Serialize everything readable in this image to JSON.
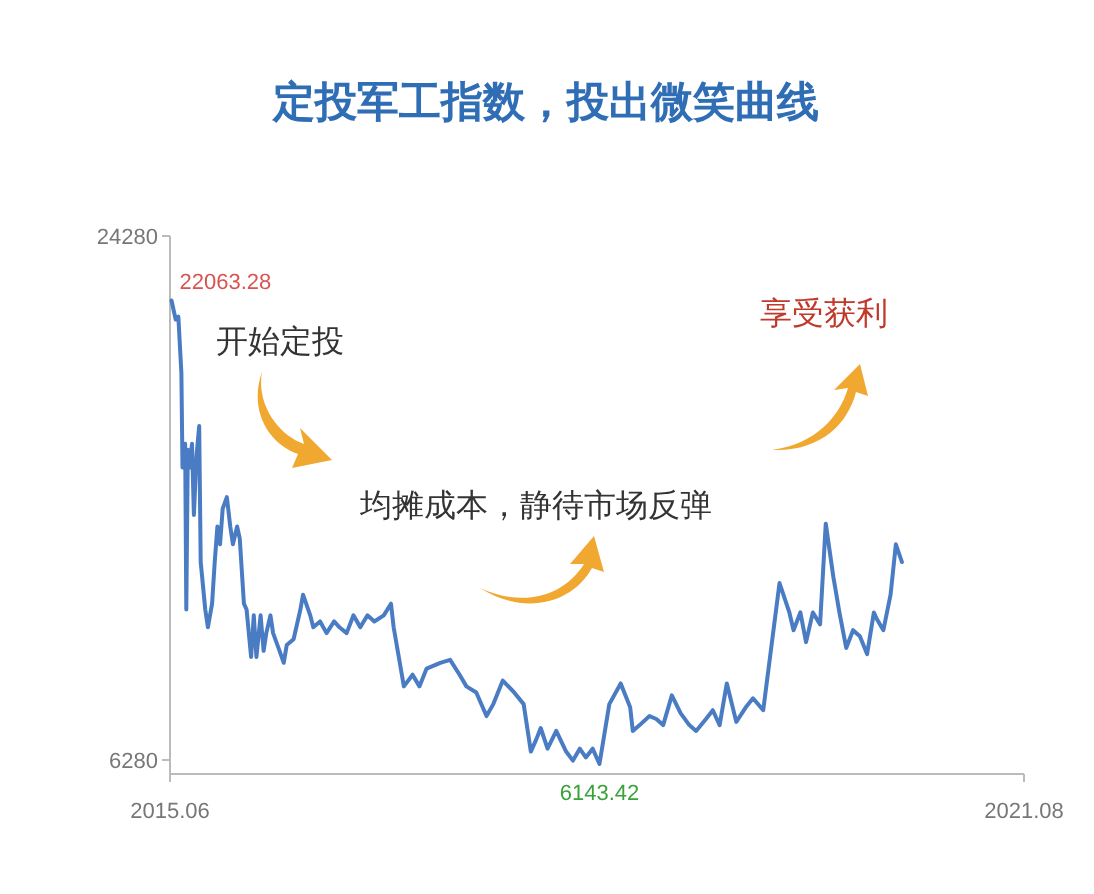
{
  "chart_data": {
    "type": "line",
    "title": "定投军工指数，投出微笑曲线",
    "x": [
      "2015-06-05",
      "2015-06-16",
      "2015-06-23",
      "2015-07-01",
      "2015-07-04",
      "2015-07-11",
      "2015-07-14",
      "2015-07-18",
      "2015-07-22",
      "2015-07-29",
      "2015-08-03",
      "2015-08-10",
      "2015-08-17",
      "2015-08-21",
      "2015-09-02",
      "2015-09-09",
      "2015-09-20",
      "2015-09-27",
      "2015-10-04",
      "2015-10-11",
      "2015-10-18",
      "2015-10-29",
      "2015-11-07",
      "2015-11-14",
      "2015-11-25",
      "2015-12-02",
      "2015-12-13",
      "2015-12-20",
      "2016-01-01",
      "2016-01-08",
      "2016-01-15",
      "2016-01-26",
      "2016-02-03",
      "2016-02-10",
      "2016-02-21",
      "2016-02-28",
      "2016-03-16",
      "2016-03-27",
      "2016-04-04",
      "2016-04-22",
      "2016-05-10",
      "2016-05-17",
      "2016-06-05",
      "2016-06-13",
      "2016-07-01",
      "2016-07-18",
      "2016-08-07",
      "2016-08-21",
      "2016-09-09",
      "2016-09-27",
      "2016-10-15",
      "2016-11-03",
      "2016-11-21",
      "2016-12-16",
      "2017-01-04",
      "2017-01-11",
      "2017-02-07",
      "2017-03-02",
      "2017-03-20",
      "2017-04-08",
      "2017-05-14",
      "2017-06-09",
      "2017-07-04",
      "2017-07-22",
      "2017-08-17",
      "2017-09-13",
      "2017-10-01",
      "2017-10-26",
      "2017-11-25",
      "2017-12-20",
      "2018-01-08",
      "2018-01-22",
      "2018-02-03",
      "2018-02-21",
      "2018-03-16",
      "2018-04-11",
      "2018-04-29",
      "2018-05-17",
      "2018-06-02",
      "2018-06-20",
      "2018-07-08",
      "2018-08-03",
      "2018-09-02",
      "2018-09-27",
      "2018-10-04",
      "2018-10-22",
      "2018-11-17",
      "2018-12-05",
      "2018-12-23",
      "2019-01-15",
      "2019-02-07",
      "2019-03-02",
      "2019-03-20",
      "2019-04-15",
      "2019-05-03",
      "2019-05-21",
      "2019-06-09",
      "2019-07-04",
      "2019-07-29",
      "2019-08-17",
      "2019-09-13",
      "2019-10-26",
      "2019-11-21",
      "2019-12-02",
      "2019-12-20",
      "2020-01-04",
      "2020-01-22",
      "2020-02-10",
      "2020-02-25",
      "2020-03-16",
      "2020-04-01",
      "2020-04-19",
      "2020-05-07",
      "2020-05-25",
      "2020-06-13",
      "2020-07-01",
      "2020-07-08",
      "2020-07-26",
      "2020-08-14",
      "2020-08-28",
      "2020-09-13"
    ],
    "values": [
      22063.28,
      21410,
      21510,
      19580,
      16330,
      17140,
      11450,
      16940,
      16330,
      17140,
      14700,
      16740,
      17750,
      13080,
      11450,
      10840,
      11650,
      13080,
      14300,
      13690,
      14910,
      15310,
      14300,
      13690,
      14300,
      13890,
      11650,
      11450,
      9820,
      11250,
      9820,
      11250,
      10030,
      10640,
      11250,
      10640,
      10030,
      9620,
      10230,
      10430,
      11450,
      11960,
      11250,
      10840,
      11040,
      10640,
      11040,
      10840,
      10640,
      11250,
      10840,
      11250,
      11040,
      11250,
      11650,
      10840,
      8810,
      9210,
      8810,
      9420,
      9620,
      9720,
      9210,
      8810,
      8600,
      7790,
      8200,
      9010,
      8600,
      8200,
      6570,
      6980,
      7380,
      6670,
      7280,
      6570,
      6260,
      6670,
      6370,
      6670,
      6143.42,
      8200,
      8910,
      8090,
      7280,
      7480,
      7790,
      7690,
      7480,
      8500,
      7890,
      7480,
      7280,
      7690,
      7990,
      7480,
      8910,
      7590,
      8090,
      8400,
      7990,
      12360,
      11350,
      10740,
      11350,
      10330,
      11350,
      10940,
      14400,
      12570,
      11350,
      10130,
      10740,
      10530,
      9920,
      11350,
      11140,
      10740,
      11960,
      13690,
      13080
    ],
    "color": "#4a7cc4",
    "xlim": [
      "2015-06",
      "2021-08"
    ],
    "xticks": [
      {
        "value": "2015-06",
        "label": "2015.06"
      },
      {
        "value": "2021-08",
        "label": "2021.08"
      }
    ],
    "ylim": [
      5800,
      24280
    ],
    "yticks": [
      6280,
      24280
    ],
    "grid": false,
    "annotations": [
      {
        "text": "22063.28",
        "x": "2015-06-05",
        "y": 22063.28
      },
      {
        "text": "6143.42",
        "x": "2018-07-08",
        "y": 6143.42
      },
      "开始定投",
      "均摊成本，静待市场反弹",
      "享受获利"
    ]
  }
}
